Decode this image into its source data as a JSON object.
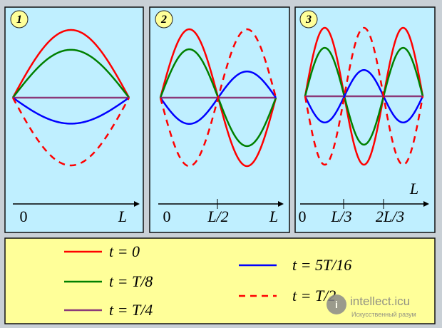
{
  "panels": [
    {
      "badge": "1",
      "mode": 1,
      "axis_labels": [
        "0",
        "L"
      ]
    },
    {
      "badge": "2",
      "mode": 2,
      "axis_labels": [
        "0",
        "L/2",
        "L"
      ]
    },
    {
      "badge": "3",
      "mode": 3,
      "axis_labels": [
        "0",
        "L/3",
        "2L/3",
        "L"
      ]
    }
  ],
  "legend": [
    {
      "label": "t = 0",
      "color": "#ff0000",
      "style": "solid",
      "factor": 1.0
    },
    {
      "label": "t = T/8",
      "color": "#008000",
      "style": "solid",
      "factor": 0.707
    },
    {
      "label": "t = T/4",
      "color": "#8b3a7a",
      "style": "solid",
      "factor": 0.0
    },
    {
      "label": "t = 5T/16",
      "color": "#0000ff",
      "style": "solid",
      "factor": -0.383
    },
    {
      "label": "t = T/2",
      "color": "#ff0000",
      "style": "dashed",
      "factor": -1.0
    }
  ],
  "colors": {
    "panel_bg": "#bfefff",
    "legend_bg": "#ffff99",
    "frame_bg": "#c9d0d6",
    "badge_bg": "#ffff99"
  },
  "watermark": {
    "title": "intellect.icu",
    "subtitle": "Искусственный разум"
  }
}
